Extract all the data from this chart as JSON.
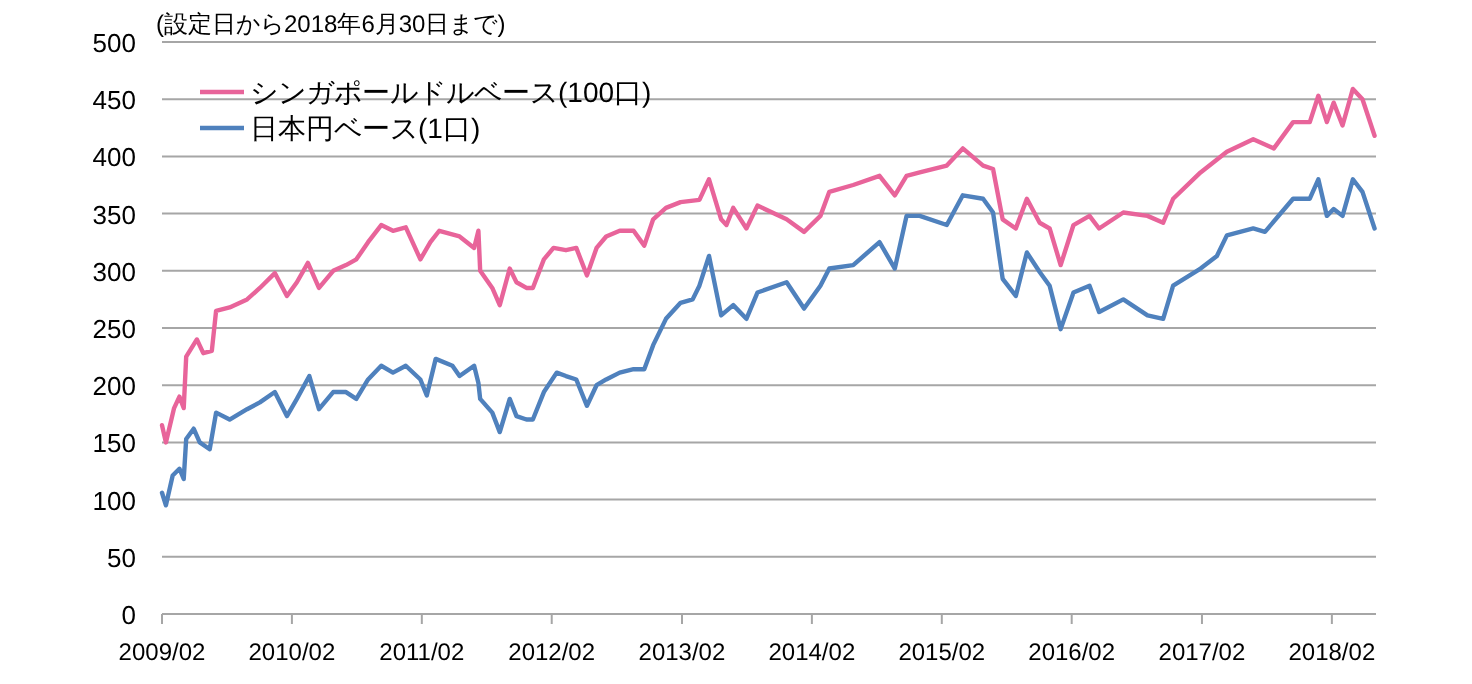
{
  "chart_data": {
    "type": "line",
    "title": "(設定日から2018年6月30日まで)",
    "xlim": [
      "2009-02-01",
      "2018-06-05"
    ],
    "xticks": [
      {
        "value": "2009-02-01",
        "label": "2009/02"
      },
      {
        "value": "2010-02-01",
        "label": "2010/02"
      },
      {
        "value": "2011-02-01",
        "label": "2011/02"
      },
      {
        "value": "2012-02-01",
        "label": "2012/02"
      },
      {
        "value": "2013-02-01",
        "label": "2013/02"
      },
      {
        "value": "2014-02-01",
        "label": "2014/02"
      },
      {
        "value": "2015-02-01",
        "label": "2015/02"
      },
      {
        "value": "2016-02-01",
        "label": "2016/02"
      },
      {
        "value": "2017-02-01",
        "label": "2017/02"
      },
      {
        "value": "2018-02-01",
        "label": "2018/02"
      }
    ],
    "ylim": [
      0,
      500
    ],
    "yticks": [
      0,
      50,
      100,
      150,
      200,
      250,
      300,
      350,
      400,
      450,
      500
    ],
    "grid": "y",
    "legend": "top left",
    "marker": "none",
    "line_style": "solid",
    "series": [
      {
        "name": "シンガポールドルベース(100口)",
        "color": "#e8649a",
        "x": [
          "2009-02-01",
          "2009-02-12",
          "2009-03-07",
          "2009-03-22",
          "2009-04-03",
          "2009-04-10",
          "2009-05-10",
          "2009-05-28",
          "2009-06-21",
          "2009-07-03",
          "2009-08-10",
          "2009-09-28",
          "2009-11-03",
          "2009-12-15",
          "2010-01-18",
          "2010-02-15",
          "2010-03-18",
          "2010-04-18",
          "2010-05-28",
          "2010-07-03",
          "2010-08-01",
          "2010-09-03",
          "2010-10-10",
          "2010-11-12",
          "2010-12-18",
          "2011-01-28",
          "2011-02-25",
          "2011-03-22",
          "2011-05-18",
          "2011-06-28",
          "2011-07-10",
          "2011-07-15",
          "2011-08-18",
          "2011-09-08",
          "2011-10-06",
          "2011-10-25",
          "2011-11-22",
          "2011-12-10",
          "2012-01-10",
          "2012-02-06",
          "2012-03-12",
          "2012-04-10",
          "2012-05-10",
          "2012-06-06",
          "2012-07-03",
          "2012-08-10",
          "2012-09-18",
          "2012-10-18",
          "2012-11-12",
          "2012-12-18",
          "2013-01-28",
          "2013-03-22",
          "2013-04-18",
          "2013-05-22",
          "2013-06-06",
          "2013-06-25",
          "2013-08-01",
          "2013-09-01",
          "2013-11-22",
          "2014-01-10",
          "2014-02-25",
          "2014-03-22",
          "2014-05-28",
          "2014-08-10",
          "2014-09-22",
          "2014-10-25",
          "2014-12-01",
          "2015-02-15",
          "2015-04-01",
          "2015-05-28",
          "2015-06-25",
          "2015-07-22",
          "2015-08-28",
          "2015-09-28",
          "2015-11-03",
          "2015-12-01",
          "2016-01-01",
          "2016-02-06",
          "2016-03-22",
          "2016-04-18",
          "2016-06-25",
          "2016-09-01",
          "2016-10-15",
          "2016-11-12",
          "2017-01-28",
          "2017-04-12",
          "2017-06-25",
          "2017-08-22",
          "2017-10-15",
          "2017-12-01",
          "2017-12-25",
          "2018-01-18",
          "2018-02-06",
          "2018-03-03",
          "2018-04-01",
          "2018-04-28",
          "2018-06-01"
        ],
        "values": [
          165,
          150,
          180,
          190,
          180,
          225,
          240,
          228,
          230,
          265,
          268,
          275,
          285,
          298,
          278,
          290,
          307,
          285,
          300,
          305,
          310,
          325,
          340,
          335,
          338,
          310,
          325,
          335,
          330,
          320,
          335,
          300,
          285,
          270,
          302,
          290,
          285,
          285,
          310,
          320,
          318,
          320,
          296,
          320,
          330,
          335,
          335,
          322,
          345,
          355,
          360,
          362,
          380,
          345,
          340,
          355,
          337,
          357,
          345,
          334,
          348,
          369,
          375,
          383,
          366,
          383,
          386,
          392,
          407,
          392,
          389,
          345,
          337,
          363,
          342,
          337,
          305,
          340,
          348,
          337,
          351,
          348,
          342,
          363,
          386,
          404,
          415,
          407,
          430,
          430,
          453,
          430,
          447,
          427,
          459,
          450,
          418
        ]
      },
      {
        "name": "日本円ベース(1口)",
        "color": "#4f81bd",
        "x": [
          "2009-02-01",
          "2009-02-12",
          "2009-03-03",
          "2009-03-22",
          "2009-04-03",
          "2009-04-10",
          "2009-05-01",
          "2009-05-18",
          "2009-06-15",
          "2009-07-03",
          "2009-08-10",
          "2009-09-28",
          "2009-11-03",
          "2009-12-15",
          "2010-01-18",
          "2010-02-15",
          "2010-03-22",
          "2010-04-18",
          "2010-05-28",
          "2010-07-03",
          "2010-08-01",
          "2010-09-03",
          "2010-10-10",
          "2010-11-12",
          "2010-12-18",
          "2011-01-28",
          "2011-02-15",
          "2011-03-12",
          "2011-04-28",
          "2011-05-18",
          "2011-06-28",
          "2011-07-10",
          "2011-07-15",
          "2011-08-18",
          "2011-09-08",
          "2011-10-06",
          "2011-10-25",
          "2011-11-22",
          "2011-12-10",
          "2012-01-10",
          "2012-02-15",
          "2012-03-12",
          "2012-04-10",
          "2012-05-10",
          "2012-06-06",
          "2012-07-03",
          "2012-08-10",
          "2012-09-18",
          "2012-10-18",
          "2012-11-12",
          "2012-12-18",
          "2013-01-28",
          "2013-03-03",
          "2013-03-22",
          "2013-04-18",
          "2013-05-22",
          "2013-06-25",
          "2013-08-01",
          "2013-09-01",
          "2013-11-22",
          "2014-01-10",
          "2014-02-25",
          "2014-03-22",
          "2014-05-28",
          "2014-08-10",
          "2014-09-22",
          "2014-10-25",
          "2014-12-01",
          "2015-02-15",
          "2015-04-01",
          "2015-05-28",
          "2015-06-25",
          "2015-07-22",
          "2015-08-28",
          "2015-09-28",
          "2015-11-03",
          "2015-12-01",
          "2016-01-01",
          "2016-02-06",
          "2016-03-22",
          "2016-04-18",
          "2016-06-25",
          "2016-09-01",
          "2016-10-15",
          "2016-11-12",
          "2017-01-28",
          "2017-03-15",
          "2017-04-12",
          "2017-06-25",
          "2017-07-28",
          "2017-10-15",
          "2017-12-01",
          "2017-12-25",
          "2018-01-18",
          "2018-02-06",
          "2018-03-03",
          "2018-04-01",
          "2018-04-28",
          "2018-06-01"
        ],
        "values": [
          106,
          95,
          121,
          127,
          118,
          153,
          162,
          150,
          144,
          176,
          170,
          179,
          185,
          194,
          173,
          188,
          208,
          179,
          194,
          194,
          188,
          205,
          217,
          211,
          217,
          205,
          191,
          223,
          217,
          208,
          217,
          202,
          188,
          176,
          159,
          188,
          173,
          170,
          170,
          194,
          211,
          208,
          205,
          182,
          200,
          205,
          211,
          214,
          214,
          235,
          258,
          272,
          275,
          287,
          313,
          261,
          270,
          258,
          281,
          290,
          267,
          287,
          302,
          305,
          325,
          302,
          348,
          348,
          340,
          366,
          363,
          351,
          293,
          278,
          316,
          299,
          287,
          249,
          281,
          287,
          264,
          275,
          261,
          258,
          287,
          302,
          313,
          331,
          337,
          334,
          363,
          363,
          380,
          348,
          354,
          348,
          380,
          369,
          337
        ]
      }
    ]
  }
}
